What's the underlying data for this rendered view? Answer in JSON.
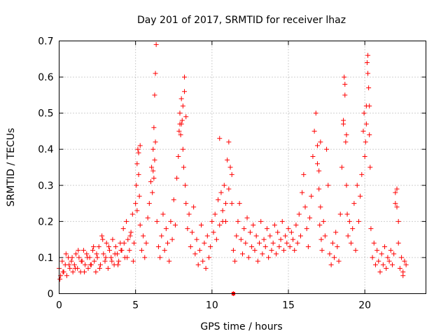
{
  "chart_data": {
    "type": "scatter",
    "title": "Day 201 of 2017, SRMTID for receiver lhaz",
    "xlabel": "GPS time / hours",
    "ylabel": "SRMTID / TECUs",
    "xlim": [
      0,
      24
    ],
    "ylim": [
      0,
      0.7
    ],
    "xticks": [
      0,
      5,
      10,
      15,
      20
    ],
    "xtick_labels": [
      "0",
      "5",
      "10",
      "15",
      "20"
    ],
    "yticks": [
      0,
      0.1,
      0.2,
      0.3,
      0.4,
      0.5,
      0.6,
      0.7
    ],
    "ytick_labels": [
      "0",
      "0.1",
      "0.2",
      "0.3",
      "0.4",
      "0.5",
      "0.6",
      "0.7"
    ],
    "grid": true,
    "legend": "none",
    "marker": "plus",
    "series": [
      {
        "name": "SRMTID",
        "color": "#ff0000",
        "x": [
          0.0,
          0.1,
          0.2,
          0.3,
          0.4,
          0.5,
          0.6,
          0.7,
          0.8,
          0.9,
          1.0,
          1.1,
          1.2,
          1.3,
          1.4,
          1.5,
          1.6,
          1.7,
          1.8,
          1.9,
          2.0,
          2.1,
          2.2,
          2.3,
          2.4,
          2.5,
          2.6,
          2.7,
          2.8,
          2.9,
          3.0,
          3.1,
          3.2,
          3.3,
          3.4,
          3.5,
          3.6,
          3.7,
          3.8,
          3.9,
          4.0,
          4.1,
          4.2,
          4.3,
          4.4,
          4.5,
          4.6,
          4.7,
          4.8,
          4.9,
          5.0,
          5.05,
          5.1,
          5.15,
          5.2,
          5.25,
          5.3,
          5.4,
          5.5,
          5.6,
          5.7,
          5.8,
          5.9,
          6.0,
          6.05,
          6.1,
          6.15,
          6.2,
          6.25,
          6.3,
          6.35,
          6.4,
          6.5,
          6.6,
          6.7,
          6.8,
          6.9,
          7.0,
          7.1,
          7.2,
          7.3,
          7.4,
          7.5,
          7.6,
          7.7,
          7.8,
          7.85,
          7.9,
          7.95,
          8.0,
          8.05,
          8.1,
          8.15,
          8.2,
          8.25,
          8.3,
          8.4,
          8.5,
          8.6,
          8.7,
          8.8,
          8.9,
          9.0,
          9.1,
          9.2,
          9.3,
          9.4,
          9.5,
          9.6,
          9.7,
          9.8,
          9.9,
          10.0,
          10.1,
          10.2,
          10.3,
          10.4,
          10.5,
          10.6,
          10.7,
          10.8,
          10.9,
          11.0,
          11.1,
          11.2,
          11.3,
          11.4,
          11.5,
          11.6,
          11.7,
          11.8,
          11.9,
          12.0,
          12.1,
          12.2,
          12.3,
          12.4,
          12.5,
          12.6,
          12.7,
          12.8,
          12.9,
          13.0,
          13.1,
          13.2,
          13.3,
          13.4,
          13.5,
          13.6,
          13.7,
          13.8,
          13.9,
          14.0,
          14.1,
          14.2,
          14.3,
          14.4,
          14.5,
          14.6,
          14.7,
          14.8,
          14.9,
          15.0,
          15.1,
          15.2,
          15.3,
          15.4,
          15.5,
          15.6,
          15.7,
          15.8,
          15.9,
          16.0,
          16.1,
          16.2,
          16.3,
          16.4,
          16.5,
          16.6,
          16.7,
          16.8,
          16.9,
          17.0,
          17.05,
          17.1,
          17.15,
          17.2,
          17.3,
          17.4,
          17.5,
          17.6,
          17.7,
          17.8,
          17.9,
          18.0,
          18.1,
          18.2,
          18.3,
          18.4,
          18.5,
          18.6,
          18.65,
          18.7,
          18.75,
          18.8,
          18.85,
          18.9,
          19.0,
          19.1,
          19.2,
          19.3,
          19.4,
          19.5,
          19.6,
          19.7,
          19.8,
          19.9,
          19.95,
          20.0,
          20.05,
          20.1,
          20.15,
          20.2,
          20.25,
          20.3,
          20.35,
          20.4,
          20.5,
          20.6,
          20.7,
          20.8,
          20.9,
          21.0,
          21.1,
          21.2,
          21.3,
          21.4,
          21.5,
          21.6,
          21.7,
          21.8,
          21.9,
          22.0,
          22.1,
          22.2,
          22.3,
          22.4,
          22.5,
          22.6,
          22.7,
          0.05,
          0.25,
          0.45,
          0.65,
          0.85,
          1.05,
          1.25,
          1.45,
          1.65,
          1.85,
          2.05,
          2.25,
          2.45,
          2.65,
          2.85,
          3.05,
          3.25,
          3.45,
          3.65,
          3.85,
          4.05,
          4.25,
          4.45,
          4.65,
          4.85,
          5.1,
          5.2,
          5.3,
          6.15,
          6.2,
          6.25,
          6.3,
          7.9,
          8.0,
          8.1,
          8.2,
          8.3,
          10.5,
          10.7,
          10.9,
          11.1,
          11.3,
          16.9,
          17.0,
          17.1,
          18.6,
          18.7,
          18.8,
          20.1,
          20.2,
          20.3,
          22.0,
          22.1,
          22.2,
          11.4,
          22.5
        ],
        "y": [
          0.07,
          0.05,
          0.09,
          0.06,
          0.08,
          0.05,
          0.1,
          0.07,
          0.09,
          0.06,
          0.08,
          0.11,
          0.07,
          0.1,
          0.06,
          0.09,
          0.12,
          0.08,
          0.11,
          0.07,
          0.1,
          0.08,
          0.12,
          0.09,
          0.06,
          0.1,
          0.13,
          0.08,
          0.16,
          0.11,
          0.09,
          0.14,
          0.07,
          0.12,
          0.1,
          0.15,
          0.08,
          0.13,
          0.11,
          0.09,
          0.14,
          0.12,
          0.18,
          0.1,
          0.2,
          0.15,
          0.12,
          0.17,
          0.22,
          0.14,
          0.25,
          0.3,
          0.36,
          0.4,
          0.33,
          0.27,
          0.19,
          0.12,
          0.16,
          0.1,
          0.14,
          0.21,
          0.25,
          0.31,
          0.35,
          0.28,
          0.4,
          0.46,
          0.55,
          0.61,
          0.69,
          0.2,
          0.13,
          0.1,
          0.16,
          0.22,
          0.12,
          0.18,
          0.14,
          0.09,
          0.2,
          0.15,
          0.26,
          0.19,
          0.32,
          0.38,
          0.45,
          0.5,
          0.44,
          0.54,
          0.48,
          0.4,
          0.35,
          0.6,
          0.3,
          0.25,
          0.18,
          0.22,
          0.13,
          0.17,
          0.24,
          0.11,
          0.15,
          0.08,
          0.12,
          0.19,
          0.09,
          0.14,
          0.07,
          0.16,
          0.1,
          0.13,
          0.2,
          0.17,
          0.22,
          0.15,
          0.26,
          0.19,
          0.28,
          0.23,
          0.3,
          0.2,
          0.37,
          0.42,
          0.35,
          0.25,
          0.12,
          0.09,
          0.16,
          0.2,
          0.25,
          0.15,
          0.11,
          0.18,
          0.14,
          0.21,
          0.1,
          0.17,
          0.13,
          0.19,
          0.12,
          0.16,
          0.09,
          0.14,
          0.2,
          0.11,
          0.15,
          0.13,
          0.18,
          0.1,
          0.16,
          0.12,
          0.14,
          0.19,
          0.11,
          0.17,
          0.13,
          0.15,
          0.2,
          0.12,
          0.16,
          0.14,
          0.18,
          0.13,
          0.17,
          0.15,
          0.12,
          0.19,
          0.14,
          0.22,
          0.16,
          0.28,
          0.33,
          0.24,
          0.18,
          0.13,
          0.21,
          0.27,
          0.38,
          0.45,
          0.5,
          0.36,
          0.29,
          0.19,
          0.24,
          0.15,
          0.12,
          0.2,
          0.16,
          0.4,
          0.3,
          0.11,
          0.08,
          0.14,
          0.1,
          0.17,
          0.13,
          0.09,
          0.22,
          0.35,
          0.48,
          0.6,
          0.55,
          0.42,
          0.3,
          0.22,
          0.16,
          0.2,
          0.14,
          0.18,
          0.25,
          0.12,
          0.3,
          0.2,
          0.27,
          0.33,
          0.45,
          0.5,
          0.38,
          0.42,
          0.52,
          0.64,
          0.66,
          0.57,
          0.44,
          0.35,
          0.18,
          0.1,
          0.14,
          0.08,
          0.12,
          0.09,
          0.06,
          0.11,
          0.08,
          0.13,
          0.07,
          0.1,
          0.09,
          0.12,
          0.08,
          0.11,
          0.25,
          0.29,
          0.14,
          0.07,
          0.1,
          0.06,
          0.09,
          0.08,
          0.04,
          0.06,
          0.11,
          0.08,
          0.1,
          0.07,
          0.12,
          0.09,
          0.06,
          0.1,
          0.08,
          0.13,
          0.11,
          0.07,
          0.15,
          0.1,
          0.13,
          0.09,
          0.11,
          0.08,
          0.12,
          0.14,
          0.1,
          0.16,
          0.09,
          0.23,
          0.39,
          0.41,
          0.34,
          0.32,
          0.37,
          0.42,
          0.47,
          0.47,
          0.52,
          0.56,
          0.49,
          0.43,
          0.2,
          0.25,
          0.29,
          0.33,
          0.41,
          0.34,
          0.42,
          0.47,
          0.58,
          0.44,
          0.47,
          0.61,
          0.52,
          0.28,
          0.24,
          0.2,
          0.0,
          0.05
        ],
        "exact_points": [
          {
            "x": 11.4,
            "y": 0.0,
            "marker": "square"
          }
        ]
      }
    ]
  }
}
